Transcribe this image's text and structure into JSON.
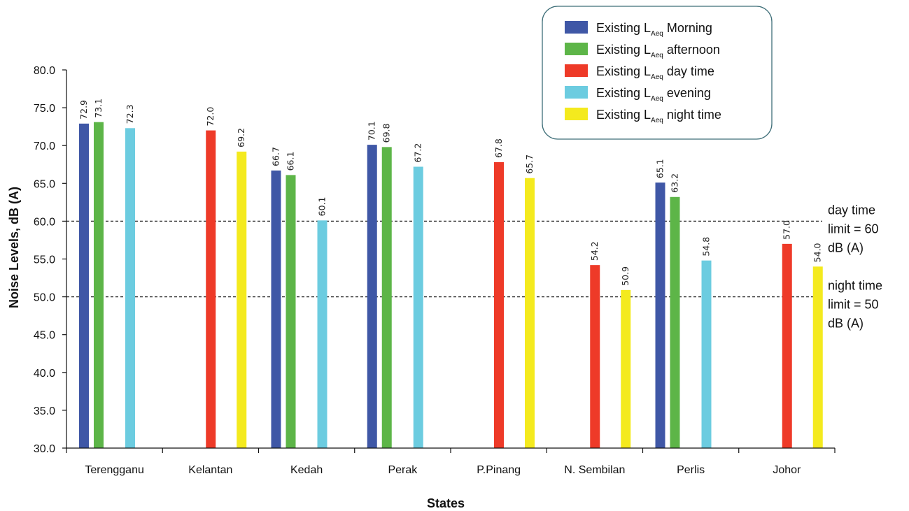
{
  "chart_data": {
    "type": "bar",
    "ylabel": "Noise Levels, dB (A)",
    "xlabel": "States",
    "ylim": [
      30,
      80
    ],
    "yticks": [
      "30.0",
      "35.0",
      "40.0",
      "45.0",
      "50.0",
      "55.0",
      "60.0",
      "65.0",
      "70.0",
      "75.0",
      "80.0"
    ],
    "categories": [
      "Terengganu",
      "Kelantan",
      "Kedah",
      "Perak",
      "P.Pinang",
      "N. Sembilan",
      "Perlis",
      "Johor"
    ],
    "series": [
      {
        "name_main": "Existing L",
        "name_sub": "Aeq",
        "name_rest": " Morning",
        "color": "#3F57A6",
        "values": [
          72.9,
          null,
          66.7,
          70.1,
          null,
          null,
          65.1,
          null
        ],
        "labels": [
          "72.9",
          "",
          "66.7",
          "70.1",
          "",
          "",
          "65.1",
          ""
        ]
      },
      {
        "name_main": "Existing L",
        "name_sub": "Aeq",
        "name_rest": " afternoon",
        "color": "#5DB548",
        "values": [
          73.1,
          null,
          66.1,
          69.8,
          null,
          null,
          63.2,
          null
        ],
        "labels": [
          "73.1",
          "",
          "66.1",
          "69.8",
          "",
          "",
          "63.2",
          ""
        ]
      },
      {
        "name_main": "Existing L",
        "name_sub": "Aeq",
        "name_rest": " day time",
        "color": "#EE3A28",
        "values": [
          null,
          72.0,
          null,
          null,
          67.8,
          54.2,
          null,
          57.0
        ],
        "labels": [
          "",
          "72.0",
          "",
          "",
          "67.8",
          "54.2",
          "",
          "57.0"
        ]
      },
      {
        "name_main": "Existing L",
        "name_sub": "Aeq",
        "name_rest": " evening",
        "color": "#6CCCE0",
        "values": [
          72.3,
          null,
          60.1,
          67.2,
          null,
          null,
          54.8,
          null
        ],
        "labels": [
          "72.3",
          "",
          "60.1",
          "67.2",
          "",
          "",
          "54.8",
          ""
        ]
      },
      {
        "name_main": "Existing L",
        "name_sub": "Aeq",
        "name_rest": " night time",
        "color": "#F4EA1E",
        "values": [
          null,
          69.2,
          null,
          null,
          65.7,
          50.9,
          null,
          54.0
        ],
        "labels": [
          "",
          "69.2",
          "",
          "",
          "65.7",
          "50.9",
          "",
          "54.0"
        ]
      }
    ],
    "reference_lines": [
      {
        "value": 60,
        "label_lines": [
          "day time",
          "limit = 60",
          "dB (A)"
        ]
      },
      {
        "value": 50,
        "label_lines": [
          "night time",
          "limit = 50",
          "dB (A)"
        ]
      }
    ],
    "legend_position": "top-right",
    "grid": false
  }
}
